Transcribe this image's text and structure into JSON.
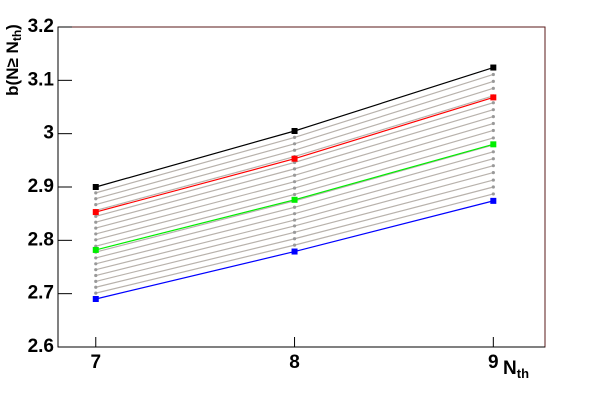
{
  "chart_data": {
    "type": "line",
    "ylabel": "b(N≥ N",
    "ylabel_sub": "th",
    "ylabel_end": ")",
    "xlabel": "N",
    "xlabel_sub": "th",
    "x": [
      7,
      8,
      9
    ],
    "xlim": [
      6.81,
      9.26
    ],
    "xticks": [
      7,
      8,
      9
    ],
    "ylim": [
      2.6,
      3.2
    ],
    "yticks": [
      2.6,
      2.7,
      2.8,
      2.9,
      3,
      3.1,
      3.2
    ],
    "series": [
      {
        "color": "#b8b2ac",
        "values": [
          2.701,
          2.791,
          2.887
        ]
      },
      {
        "color": "#b8b2ac",
        "values": [
          2.712,
          2.803,
          2.9
        ]
      },
      {
        "color": "#b8b2ac",
        "values": [
          2.723,
          2.815,
          2.913
        ]
      },
      {
        "color": "#b8b2ac",
        "values": [
          2.734,
          2.827,
          2.927
        ]
      },
      {
        "color": "#b8b2ac",
        "values": [
          2.745,
          2.838,
          2.94
        ]
      },
      {
        "color": "#b8b2ac",
        "values": [
          2.756,
          2.85,
          2.953
        ]
      },
      {
        "color": "#b8b2ac",
        "values": [
          2.767,
          2.862,
          2.966
        ]
      },
      {
        "color": "#b8b2ac",
        "values": [
          2.778,
          2.874,
          2.979
        ]
      },
      {
        "color": "#b8b2ac",
        "values": [
          2.789,
          2.886,
          2.992
        ]
      },
      {
        "color": "#b8b2ac",
        "values": [
          2.801,
          2.898,
          3.006
        ]
      },
      {
        "color": "#b8b2ac",
        "values": [
          2.812,
          2.91,
          3.019
        ]
      },
      {
        "color": "#b8b2ac",
        "values": [
          2.823,
          2.922,
          3.032
        ]
      },
      {
        "color": "#b8b2ac",
        "values": [
          2.834,
          2.934,
          3.045
        ]
      },
      {
        "color": "#b8b2ac",
        "values": [
          2.845,
          2.946,
          3.058
        ]
      },
      {
        "color": "#b8b2ac",
        "values": [
          2.856,
          2.957,
          3.071
        ]
      },
      {
        "color": "#b8b2ac",
        "values": [
          2.867,
          2.969,
          3.085
        ]
      },
      {
        "color": "#b8b2ac",
        "values": [
          2.878,
          2.981,
          3.098
        ]
      },
      {
        "color": "#b8b2ac",
        "values": [
          2.889,
          2.993,
          3.111
        ]
      },
      {
        "color": "#0000ff",
        "values": [
          2.69,
          2.779,
          2.874
        ]
      },
      {
        "color": "#00ee00",
        "values": [
          2.782,
          2.876,
          2.98
        ]
      },
      {
        "color": "#ff0000",
        "values": [
          2.853,
          2.953,
          3.068
        ]
      },
      {
        "color": "#000000",
        "values": [
          2.9,
          3.005,
          3.124
        ]
      }
    ]
  }
}
